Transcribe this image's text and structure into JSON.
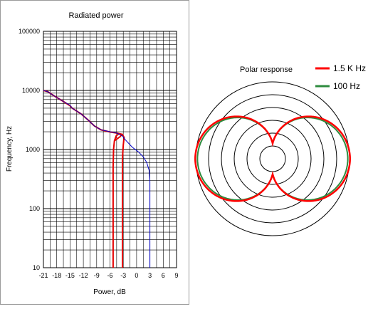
{
  "chart_data": [
    {
      "type": "line",
      "title": "Radiated power",
      "xlabel": "Power, dB",
      "ylabel": "Frequency, Hz",
      "xlim": [
        -21,
        9
      ],
      "ylim": [
        10,
        100000
      ],
      "y_scale": "log",
      "grid": true,
      "x_ticks": [
        "-21",
        "-18",
        "-15",
        "-12",
        "-9",
        "-6",
        "-3",
        "0",
        "3",
        "6",
        "9"
      ],
      "y_ticks": [
        "10",
        "100",
        "1000",
        "10000",
        "100000"
      ],
      "series": [
        {
          "color": "#e60000",
          "points": [
            [
              -5.3,
              10
            ],
            [
              -5.3,
              100
            ],
            [
              -5.3,
              500
            ],
            [
              -5.2,
              1000
            ],
            [
              -5.0,
              1400
            ],
            [
              -4.6,
              1700
            ],
            [
              -4.0,
              1850
            ],
            [
              -3.3,
              1800
            ],
            [
              -3.7,
              1650
            ],
            [
              -4.5,
              1500
            ],
            [
              -5.0,
              1400
            ]
          ]
        },
        {
          "color": "#e60000",
          "points": [
            [
              -3.2,
              10
            ],
            [
              -3.2,
              100
            ],
            [
              -3.2,
              700
            ],
            [
              -3.0,
              1200
            ],
            [
              -2.8,
              1600
            ],
            [
              -3.2,
              1800
            ],
            [
              -4.5,
              1900
            ],
            [
              -6.0,
              1980
            ],
            [
              -8.0,
              2150
            ],
            [
              -9.5,
              2500
            ],
            [
              -11.0,
              3200
            ],
            [
              -12.5,
              4000
            ],
            [
              -14.5,
              5000
            ],
            [
              -15.0,
              5500
            ],
            [
              -16.5,
              6500
            ],
            [
              -18.5,
              8000
            ],
            [
              -20.0,
              9500
            ],
            [
              -21.0,
              10000
            ]
          ]
        },
        {
          "color": "#0000c8",
          "points": [
            [
              3.0,
              10
            ],
            [
              3.0,
              100
            ],
            [
              3.0,
              300
            ],
            [
              2.8,
              450
            ],
            [
              2.3,
              600
            ],
            [
              1.5,
              750
            ],
            [
              0.5,
              900
            ],
            [
              -1.0,
              1100
            ],
            [
              -2.5,
              1450
            ],
            [
              -3.2,
              1700
            ],
            [
              -4.5,
              1900
            ],
            [
              -6.0,
              2000
            ],
            [
              -8.0,
              2150
            ],
            [
              -9.5,
              2500
            ],
            [
              -11.0,
              3200
            ],
            [
              -12.5,
              4000
            ],
            [
              -14.5,
              5000
            ],
            [
              -15.0,
              5600
            ],
            [
              -16.5,
              6500
            ],
            [
              -18.5,
              8000
            ],
            [
              -20.0,
              9500
            ],
            [
              -21.0,
              10000
            ]
          ]
        }
      ]
    },
    {
      "type": "polar",
      "title": "Polar response",
      "rings": 6,
      "legend_position": "top-right",
      "series": [
        {
          "name": "1.5 K Hz",
          "color": "#ff0000"
        },
        {
          "name": "100 Hz",
          "color": "#2e8b3e"
        }
      ]
    }
  ]
}
